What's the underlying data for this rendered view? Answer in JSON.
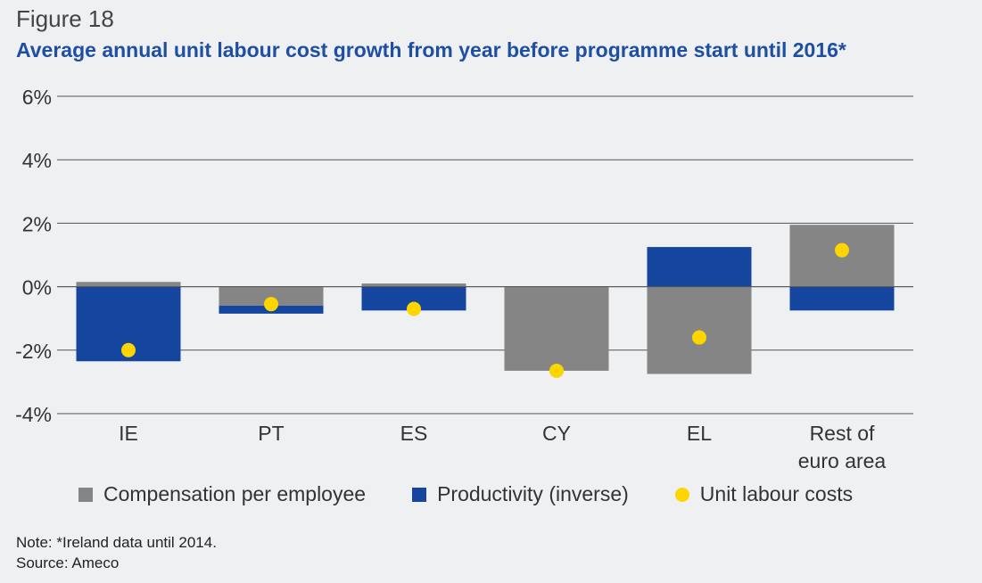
{
  "figure_label": "Figure 18",
  "title": "Average annual unit labour cost growth from year before programme start until 2016*",
  "legend": {
    "compensation": "Compensation per employee",
    "productivity": "Productivity (inverse)",
    "ulc": "Unit labour costs"
  },
  "note": "Note: *Ireland data until 2014.",
  "source": "Source: Ameco",
  "colors": {
    "compensation": "#858585",
    "productivity": "#1446a0",
    "ulc": "#ffd500",
    "title": "#1f4fa3",
    "grid": "#555555"
  },
  "chart_data": {
    "type": "bar",
    "stacked": true,
    "categories": [
      "IE",
      "PT",
      "ES",
      "CY",
      "EL",
      "Rest of\neuro area"
    ],
    "series": [
      {
        "name": "Compensation per employee",
        "kind": "bar",
        "values": [
          0.15,
          -0.6,
          0.1,
          -2.65,
          -2.75,
          1.95
        ]
      },
      {
        "name": "Productivity (inverse)",
        "kind": "bar",
        "values": [
          -2.35,
          -0.25,
          -0.75,
          0.0,
          1.25,
          -0.75
        ]
      },
      {
        "name": "Unit labour costs",
        "kind": "dot",
        "values": [
          -2.0,
          -0.55,
          -0.7,
          -2.65,
          -1.6,
          1.15
        ]
      }
    ],
    "y_ticks": [
      "6%",
      "4%",
      "2%",
      "0%",
      "-2%",
      "-4%"
    ],
    "y_tick_values": [
      6,
      4,
      2,
      0,
      -2,
      -4
    ],
    "ylim": [
      -4,
      6
    ],
    "grid": true,
    "legend_position": "bottom"
  }
}
